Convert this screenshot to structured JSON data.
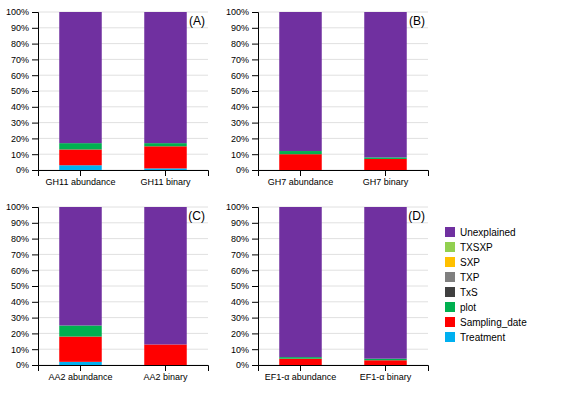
{
  "chart_data": [
    {
      "type": "bar",
      "stacked": true,
      "grid": true,
      "title": "(A)",
      "categories": [
        "GH11 abundance",
        "GH11 binary"
      ],
      "series": [
        {
          "name": "Treatment",
          "color": "#00B0F0",
          "values": [
            3,
            1
          ]
        },
        {
          "name": "Sampling_date",
          "color": "#FF0000",
          "values": [
            10,
            14
          ]
        },
        {
          "name": "plot",
          "color": "#00B050",
          "values": [
            4,
            2
          ]
        },
        {
          "name": "TxS",
          "color": "#404040",
          "values": [
            0,
            0
          ]
        },
        {
          "name": "TXP",
          "color": "#7F7F7F",
          "values": [
            0,
            0
          ]
        },
        {
          "name": "SXP",
          "color": "#FFC000",
          "values": [
            0,
            0
          ]
        },
        {
          "name": "TXSXP",
          "color": "#92D050",
          "values": [
            0,
            0
          ]
        },
        {
          "name": "Unexplained",
          "color": "#7030A0",
          "values": [
            83,
            83
          ]
        }
      ],
      "ylim": [
        0,
        100
      ],
      "yticks": [
        {
          "value": 0,
          "label": "0%"
        },
        {
          "value": 10,
          "label": "10%"
        },
        {
          "value": 20,
          "label": "20%"
        },
        {
          "value": 30,
          "label": "30%"
        },
        {
          "value": 40,
          "label": "40%"
        },
        {
          "value": 50,
          "label": "50%"
        },
        {
          "value": 60,
          "label": "60%"
        },
        {
          "value": 70,
          "label": "70%"
        },
        {
          "value": 80,
          "label": "80%"
        },
        {
          "value": 90,
          "label": "90%"
        },
        {
          "value": 100,
          "label": "100%"
        }
      ]
    },
    {
      "type": "bar",
      "stacked": true,
      "grid": true,
      "title": "(B)",
      "categories": [
        "GH7 abundance",
        "GH7 binary"
      ],
      "series": [
        {
          "name": "Treatment",
          "color": "#00B0F0",
          "values": [
            0,
            0
          ]
        },
        {
          "name": "Sampling_date",
          "color": "#FF0000",
          "values": [
            10,
            7
          ]
        },
        {
          "name": "plot",
          "color": "#00B050",
          "values": [
            2,
            1
          ]
        },
        {
          "name": "TxS",
          "color": "#404040",
          "values": [
            0,
            0
          ]
        },
        {
          "name": "TXP",
          "color": "#7F7F7F",
          "values": [
            0,
            0
          ]
        },
        {
          "name": "SXP",
          "color": "#FFC000",
          "values": [
            0,
            0
          ]
        },
        {
          "name": "TXSXP",
          "color": "#92D050",
          "values": [
            0,
            0
          ]
        },
        {
          "name": "Unexplained",
          "color": "#7030A0",
          "values": [
            88,
            92
          ]
        }
      ],
      "ylim": [
        0,
        100
      ],
      "yticks": [
        {
          "value": 0,
          "label": "0%"
        },
        {
          "value": 10,
          "label": "10%"
        },
        {
          "value": 20,
          "label": "20%"
        },
        {
          "value": 30,
          "label": "30%"
        },
        {
          "value": 40,
          "label": "40%"
        },
        {
          "value": 50,
          "label": "50%"
        },
        {
          "value": 60,
          "label": "60%"
        },
        {
          "value": 70,
          "label": "70%"
        },
        {
          "value": 80,
          "label": "80%"
        },
        {
          "value": 90,
          "label": "90%"
        },
        {
          "value": 100,
          "label": "100%"
        }
      ]
    },
    {
      "type": "bar",
      "stacked": true,
      "grid": true,
      "title": "(C)",
      "categories": [
        "AA2 abundance",
        "AA2 binary"
      ],
      "series": [
        {
          "name": "Treatment",
          "color": "#00B0F0",
          "values": [
            2,
            0
          ]
        },
        {
          "name": "Sampling_date",
          "color": "#FF0000",
          "values": [
            16,
            13
          ]
        },
        {
          "name": "plot",
          "color": "#00B050",
          "values": [
            7,
            0
          ]
        },
        {
          "name": "TxS",
          "color": "#404040",
          "values": [
            0,
            0
          ]
        },
        {
          "name": "TXP",
          "color": "#7F7F7F",
          "values": [
            0,
            0
          ]
        },
        {
          "name": "SXP",
          "color": "#FFC000",
          "values": [
            0,
            0
          ]
        },
        {
          "name": "TXSXP",
          "color": "#92D050",
          "values": [
            0,
            0
          ]
        },
        {
          "name": "Unexplained",
          "color": "#7030A0",
          "values": [
            75,
            87
          ]
        }
      ],
      "ylim": [
        0,
        100
      ],
      "yticks": [
        {
          "value": 0,
          "label": "0%"
        },
        {
          "value": 10,
          "label": "10%"
        },
        {
          "value": 20,
          "label": "20%"
        },
        {
          "value": 30,
          "label": "30%"
        },
        {
          "value": 40,
          "label": "40%"
        },
        {
          "value": 50,
          "label": "50%"
        },
        {
          "value": 60,
          "label": "60%"
        },
        {
          "value": 70,
          "label": "70%"
        },
        {
          "value": 80,
          "label": "80%"
        },
        {
          "value": 90,
          "label": "90%"
        },
        {
          "value": 100,
          "label": "100%"
        }
      ]
    },
    {
      "type": "bar",
      "stacked": true,
      "grid": true,
      "title": "(D)",
      "legend": "right",
      "categories": [
        "EF1-α abundance",
        "EF1-α binary"
      ],
      "series": [
        {
          "name": "Treatment",
          "color": "#00B0F0",
          "values": [
            0,
            0
          ]
        },
        {
          "name": "Sampling_date",
          "color": "#FF0000",
          "values": [
            4,
            3
          ]
        },
        {
          "name": "plot",
          "color": "#00B050",
          "values": [
            1,
            1
          ]
        },
        {
          "name": "TxS",
          "color": "#404040",
          "values": [
            0,
            0
          ]
        },
        {
          "name": "TXP",
          "color": "#7F7F7F",
          "values": [
            0,
            0
          ]
        },
        {
          "name": "SXP",
          "color": "#FFC000",
          "values": [
            0,
            0
          ]
        },
        {
          "name": "TXSXP",
          "color": "#92D050",
          "values": [
            0,
            0
          ]
        },
        {
          "name": "Unexplained",
          "color": "#7030A0",
          "values": [
            95,
            96
          ]
        }
      ],
      "ylim": [
        0,
        100
      ],
      "yticks": [
        {
          "value": 0,
          "label": "0%"
        },
        {
          "value": 10,
          "label": "10%"
        },
        {
          "value": 20,
          "label": "20%"
        },
        {
          "value": 30,
          "label": "30%"
        },
        {
          "value": 40,
          "label": "40%"
        },
        {
          "value": 50,
          "label": "50%"
        },
        {
          "value": 60,
          "label": "60%"
        },
        {
          "value": 70,
          "label": "70%"
        },
        {
          "value": 80,
          "label": "80%"
        },
        {
          "value": 90,
          "label": "90%"
        },
        {
          "value": 100,
          "label": "100%"
        }
      ]
    }
  ]
}
